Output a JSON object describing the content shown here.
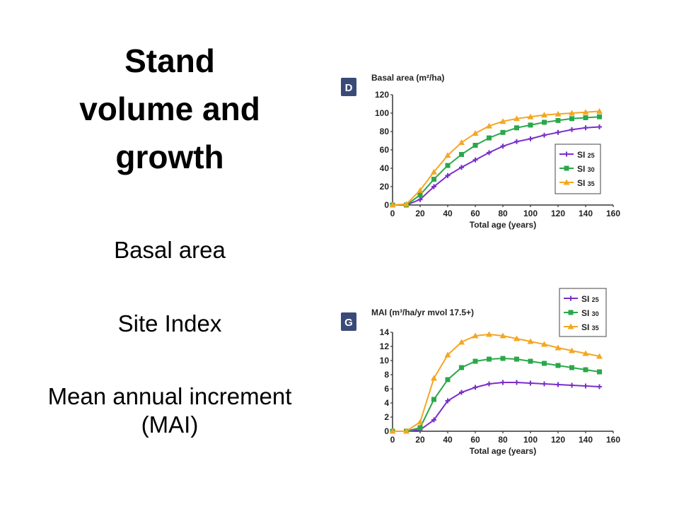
{
  "slide": {
    "title_lines": [
      "Stand",
      "volume and",
      "growth"
    ],
    "bullets": [
      "Basal area",
      "Site Index",
      "Mean annual increment (MAI)"
    ]
  },
  "chart_data": [
    {
      "type": "line",
      "panel_label": "D",
      "title": "Basal area (m²/ha)",
      "xlabel": "Total age (years)",
      "ylabel": "",
      "xlim": [
        0,
        160
      ],
      "ylim": [
        0,
        120
      ],
      "xticks": [
        0,
        20,
        40,
        60,
        80,
        100,
        120,
        140,
        160
      ],
      "yticks": [
        0,
        20,
        40,
        60,
        80,
        100,
        120
      ],
      "legend_position": "right",
      "x": [
        0,
        10,
        20,
        30,
        40,
        50,
        60,
        70,
        80,
        90,
        100,
        110,
        120,
        130,
        140,
        150
      ],
      "series": [
        {
          "name": "SI",
          "name_sub": "25",
          "color": "#7a2fc8",
          "marker": "plus",
          "values": [
            0,
            0,
            6,
            20,
            32,
            41,
            49,
            57,
            64,
            69,
            72,
            76,
            79,
            82,
            84,
            85
          ]
        },
        {
          "name": "SI",
          "name_sub": "30",
          "color": "#2aa84a",
          "marker": "square",
          "values": [
            0,
            0,
            11,
            28,
            43,
            55,
            65,
            73,
            79,
            84,
            87,
            90,
            92,
            94,
            95,
            96
          ]
        },
        {
          "name": "SI",
          "name_sub": "35",
          "color": "#f5a623",
          "marker": "triangle",
          "values": [
            0,
            1,
            16,
            36,
            54,
            68,
            78,
            86,
            91,
            94,
            96,
            98,
            99,
            100,
            101,
            102
          ]
        }
      ]
    },
    {
      "type": "line",
      "panel_label": "G",
      "title": "MAI (m³/ha/yr mvol 17.5+)",
      "xlabel": "Total age (years)",
      "ylabel": "",
      "xlim": [
        0,
        160
      ],
      "ylim": [
        0,
        14
      ],
      "xticks": [
        0,
        20,
        40,
        60,
        80,
        100,
        120,
        140,
        160
      ],
      "yticks": [
        0,
        2,
        4,
        6,
        8,
        10,
        12,
        14
      ],
      "legend_position": "top-right",
      "x": [
        0,
        10,
        20,
        30,
        40,
        50,
        60,
        70,
        80,
        90,
        100,
        110,
        120,
        130,
        140,
        150
      ],
      "series": [
        {
          "name": "SI",
          "name_sub": "25",
          "color": "#7a2fc8",
          "marker": "plus",
          "values": [
            0,
            0,
            0.2,
            1.6,
            4.3,
            5.5,
            6.2,
            6.7,
            6.9,
            6.9,
            6.8,
            6.7,
            6.6,
            6.5,
            6.4,
            6.3
          ]
        },
        {
          "name": "SI",
          "name_sub": "30",
          "color": "#2aa84a",
          "marker": "square",
          "values": [
            0,
            0,
            0.5,
            4.5,
            7.3,
            9.0,
            9.9,
            10.2,
            10.3,
            10.2,
            9.9,
            9.6,
            9.3,
            9.0,
            8.7,
            8.4
          ]
        },
        {
          "name": "SI",
          "name_sub": "35",
          "color": "#f5a623",
          "marker": "triangle",
          "values": [
            0,
            0,
            1.3,
            7.5,
            10.8,
            12.6,
            13.5,
            13.7,
            13.5,
            13.1,
            12.7,
            12.3,
            11.8,
            11.4,
            11.0,
            10.6
          ]
        }
      ]
    }
  ]
}
